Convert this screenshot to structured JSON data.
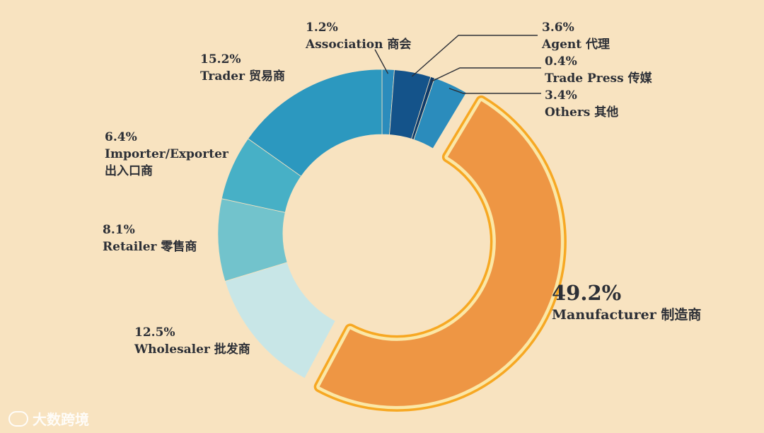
{
  "chart_data": {
    "type": "pie",
    "style": "donut",
    "segments": [
      {
        "key": "association",
        "label": "Association 商会",
        "value": 1.2,
        "value_label": "1.2%",
        "color": "#2b8cbc"
      },
      {
        "key": "agent",
        "label": "Agent 代理",
        "value": 3.6,
        "value_label": "3.6%",
        "color": "#14538a"
      },
      {
        "key": "tradepress",
        "label": "Trade Press 传媒",
        "value": 0.4,
        "value_label": "0.4%",
        "color": "#0d3a6a"
      },
      {
        "key": "others",
        "label": "Others 其他",
        "value": 3.4,
        "value_label": "3.4%",
        "color": "#2b8cbc"
      },
      {
        "key": "manufacturer",
        "label": "Manufacturer 制造商",
        "value": 49.2,
        "value_label": "49.2%",
        "color": "#ee9644",
        "highlighted": true
      },
      {
        "key": "wholesaler",
        "label": "Wholesaler 批发商",
        "value": 12.5,
        "value_label": "12.5%",
        "color": "#c8e6e7"
      },
      {
        "key": "retailer",
        "label": "Retailer 零售商",
        "value": 8.1,
        "value_label": "8.1%",
        "color": "#72c3cc"
      },
      {
        "key": "importer",
        "label": "Importer/Exporter 出入口商",
        "value": 6.4,
        "value_label": "6.4%",
        "color": "#47b0c6"
      },
      {
        "key": "trader",
        "label": "Trader 贸易商",
        "value": 15.2,
        "value_label": "15.2%",
        "color": "#2c98bf"
      }
    ]
  },
  "colors": {
    "background": "#f8e3c0",
    "highlight_outline": "#f7a823",
    "text": "#2c2f36"
  },
  "watermark": {
    "text": "大数跨境",
    "icon": "logo-icon"
  }
}
